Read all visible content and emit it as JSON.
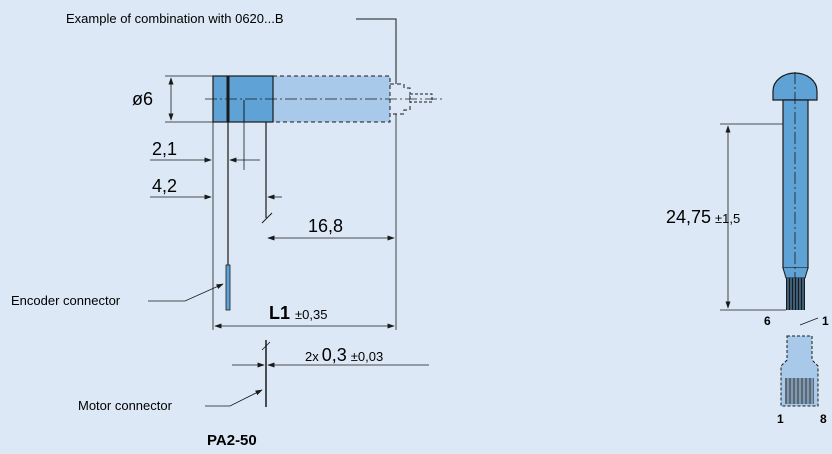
{
  "colors": {
    "background": "#dce8f5",
    "body_fill": "#5fa3d6",
    "body_fill_light": "#a8c9ea",
    "outline": "#1a1a1a"
  },
  "left_view": {
    "combination_note": "Example of combination with 0620...B",
    "diameter_label": "ø6",
    "dim_2_1": "2,1",
    "dim_4_2": "4,2",
    "dim_16_8": "16,8",
    "encoder_connector_label": "Encoder connector",
    "l1_main": "L1",
    "l1_tol": "±0,35",
    "pin_prefix": "2x",
    "pin_main": "0,3",
    "pin_tol": "±0,03",
    "motor_connector_label": "Motor connector",
    "model_name": "PA2-50"
  },
  "right_view": {
    "length_main": "24,75",
    "length_tol": "±1,5",
    "pin_top_left": "6",
    "pin_top_right": "1",
    "pin_bottom_left": "1",
    "pin_bottom_right": "8"
  }
}
